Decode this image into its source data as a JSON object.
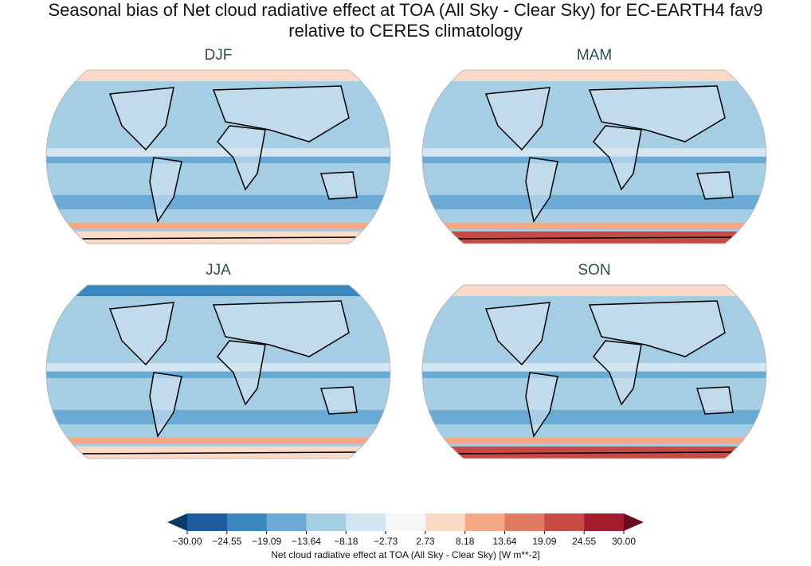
{
  "title": "Seasonal bias of Net cloud radiative effect at TOA (All Sky - Clear Sky) for EC-EARTH4 fav9",
  "subtitle": "relative to CERES climatology",
  "panels": [
    {
      "title": "DJF"
    },
    {
      "title": "MAM"
    },
    {
      "title": "JJA"
    },
    {
      "title": "SON"
    }
  ],
  "colorbar": {
    "label": "Net cloud radiative effect at TOA (All Sky - Clear Sky) [W m**-2]",
    "ticks": [
      {
        "value": -30,
        "label": "−30.00"
      },
      {
        "value": -24.55,
        "label": "−24.55"
      },
      {
        "value": -19.09,
        "label": "−19.09"
      },
      {
        "value": -13.64,
        "label": "−13.64"
      },
      {
        "value": -8.18,
        "label": "−8.18"
      },
      {
        "value": -2.73,
        "label": "−2.73"
      },
      {
        "value": 2.73,
        "label": "2.73"
      },
      {
        "value": 8.18,
        "label": "8.18"
      },
      {
        "value": 13.64,
        "label": "13.64"
      },
      {
        "value": 19.09,
        "label": "19.09"
      },
      {
        "value": 24.55,
        "label": "24.55"
      },
      {
        "value": 30,
        "label": "30.00"
      }
    ],
    "colors": [
      "#1c5b9e",
      "#3a87c0",
      "#6aaad5",
      "#a5cde4",
      "#d3e5f1",
      "#f7f7f7",
      "#fbd9c7",
      "#f4a886",
      "#e07b62",
      "#c84a45",
      "#a51c2e"
    ],
    "extend_colors": [
      "#0c3865",
      "#6a0c20"
    ]
  }
}
